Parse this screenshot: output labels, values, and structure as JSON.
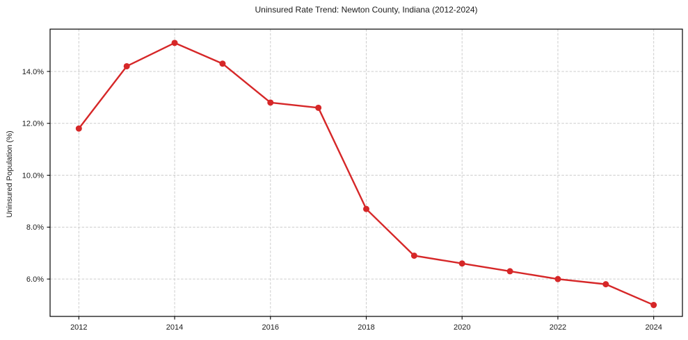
{
  "chart_data": {
    "type": "line",
    "title": "Uninsured Rate Trend: Newton County, Indiana (2012-2024)",
    "xlabel": "",
    "ylabel": "Uninsured Population (%)",
    "x": [
      2012,
      2013,
      2014,
      2015,
      2016,
      2017,
      2018,
      2019,
      2020,
      2021,
      2022,
      2023,
      2024
    ],
    "values": [
      11.8,
      14.2,
      15.1,
      14.3,
      12.8,
      12.6,
      8.7,
      6.9,
      6.6,
      6.3,
      6.0,
      5.8,
      5.0
    ],
    "xlim": [
      2011.4,
      2024.6
    ],
    "ylim": [
      4.56,
      15.63
    ],
    "xticks": [
      2012,
      2014,
      2016,
      2018,
      2020,
      2022,
      2024
    ],
    "xtick_labels": [
      "2012",
      "2014",
      "2016",
      "2018",
      "2020",
      "2022",
      "2024"
    ],
    "yticks": [
      6,
      8,
      10,
      12,
      14
    ],
    "ytick_labels": [
      "6.0%",
      "8.0%",
      "10.0%",
      "12.0%",
      "14.0%"
    ],
    "grid": true,
    "grid_style": "dashed",
    "legend": false,
    "marker": "circle",
    "colors": {
      "line": "#d62728",
      "grid": "#cccccc",
      "spine": "#000000",
      "text": "#1a1a1a",
      "background": "#ffffff"
    }
  }
}
